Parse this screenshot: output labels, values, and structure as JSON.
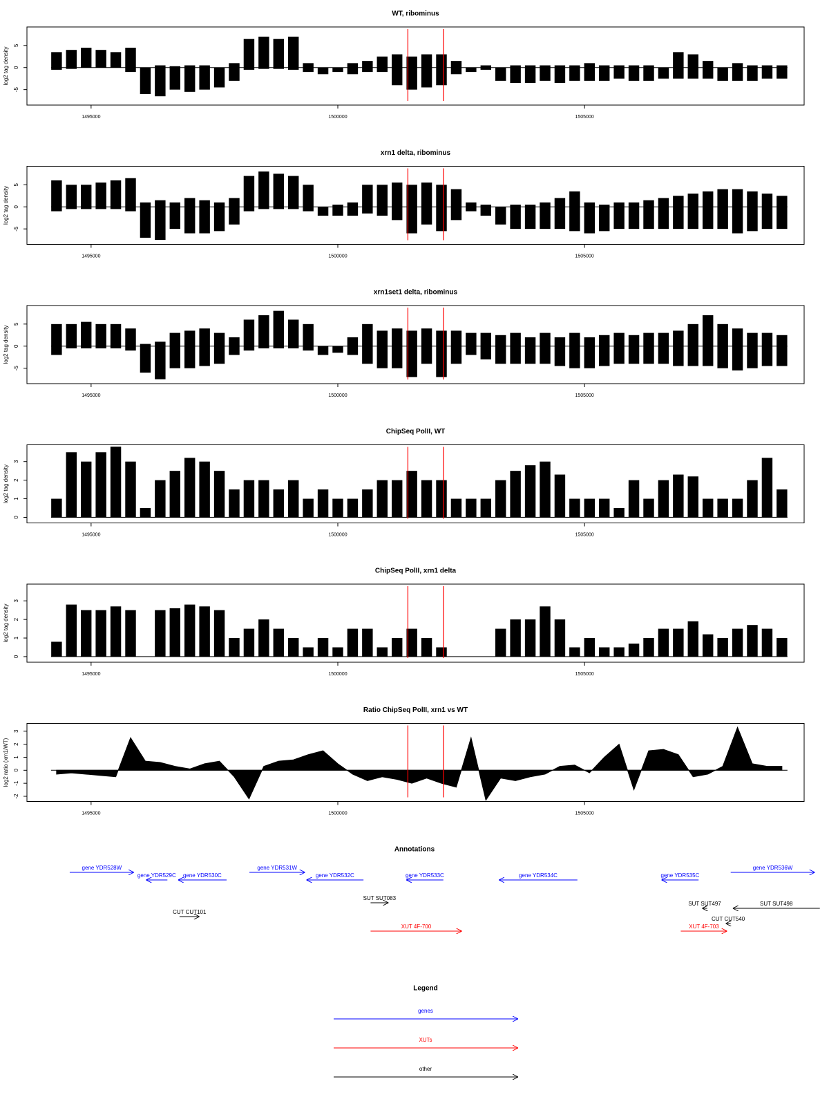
{
  "chart_data": [
    {
      "type": "bar",
      "title": "WT, ribominus",
      "ylabel": "log2 tag density",
      "x": [
        1494300,
        1494600,
        1494900,
        1495200,
        1495500,
        1495800,
        1496100,
        1496400,
        1496700,
        1497000,
        1497300,
        1497600,
        1497900,
        1498200,
        1498500,
        1498800,
        1499100,
        1499400,
        1499700,
        1500000,
        1500300,
        1500600,
        1500900,
        1501200,
        1501500,
        1501800,
        1502100,
        1502400,
        1502700,
        1503000,
        1503300,
        1503600,
        1503900,
        1504200,
        1504500,
        1504800,
        1505100,
        1505400,
        1505700,
        1506000,
        1506300,
        1506600,
        1506900,
        1507200,
        1507500,
        1507800,
        1508100,
        1508400,
        1508700,
        1509000
      ],
      "series": [
        {
          "color": "#000000",
          "values": [
            3.5,
            4,
            4.5,
            4,
            3.5,
            4.5,
            0,
            0.5,
            0.3,
            0.5,
            0.5,
            0,
            1,
            6.5,
            7,
            6.5,
            7,
            1,
            0,
            0,
            1,
            1.5,
            2.5,
            3,
            2.5,
            3,
            3,
            1.5,
            0,
            0.5,
            0,
            0.5,
            0.5,
            0.5,
            0.5,
            0.5,
            1,
            0.5,
            0.5,
            0.5,
            0.5,
            0,
            3.5,
            3,
            1.5,
            0,
            1,
            0.5,
            0.5,
            0.5
          ]
        },
        {
          "color": "#000000",
          "values": [
            -0.5,
            -0.3,
            0,
            0,
            0,
            -1,
            -6,
            -6.5,
            -5,
            -5.5,
            -5,
            -4.5,
            -3,
            -0.5,
            -0.3,
            -0.3,
            -0.5,
            -1,
            -1.5,
            -1,
            -1.5,
            -1,
            -1,
            -4,
            -5,
            -4.5,
            -4,
            -1.5,
            -1,
            -0.5,
            -3,
            -3.5,
            -3.5,
            -3,
            -3.5,
            -3,
            -3,
            -3,
            -2.5,
            -3,
            -3,
            -2.5,
            -2.5,
            -2.5,
            -2.5,
            -3,
            -3,
            -3,
            -2.5,
            -2.5
          ]
        }
      ],
      "xlim": [
        1493700,
        1509450
      ],
      "xticks": [
        1495000,
        1500000,
        1505000
      ],
      "ylim": [
        -8.5,
        9.2
      ],
      "yticks": [
        -5,
        0,
        5
      ],
      "vlines": [
        1501420,
        1502140
      ],
      "vline_color": "#ff0000"
    },
    {
      "type": "bar",
      "title": "xrn1 delta, ribominus",
      "ylabel": "log2 tag density",
      "x": [
        1494300,
        1494600,
        1494900,
        1495200,
        1495500,
        1495800,
        1496100,
        1496400,
        1496700,
        1497000,
        1497300,
        1497600,
        1497900,
        1498200,
        1498500,
        1498800,
        1499100,
        1499400,
        1499700,
        1500000,
        1500300,
        1500600,
        1500900,
        1501200,
        1501500,
        1501800,
        1502100,
        1502400,
        1502700,
        1503000,
        1503300,
        1503600,
        1503900,
        1504200,
        1504500,
        1504800,
        1505100,
        1505400,
        1505700,
        1506000,
        1506300,
        1506600,
        1506900,
        1507200,
        1507500,
        1507800,
        1508100,
        1508400,
        1508700,
        1509000
      ],
      "series": [
        {
          "color": "#000000",
          "values": [
            6,
            5,
            5,
            5.5,
            6,
            6.5,
            1,
            1.5,
            1,
            2,
            1.5,
            1,
            2,
            7,
            8,
            7.5,
            7,
            5,
            0,
            0.5,
            1,
            5,
            5,
            5.5,
            5,
            5.5,
            5,
            4,
            1,
            0.5,
            0,
            0.5,
            0.5,
            1,
            2,
            3.5,
            1,
            0.5,
            1,
            1,
            1.5,
            2,
            2.5,
            3,
            3.5,
            4,
            4,
            3.5,
            3,
            2.5
          ]
        },
        {
          "color": "#000000",
          "values": [
            -1,
            -0.5,
            -0.5,
            -0.5,
            -0.5,
            -1,
            -7,
            -7.5,
            -5,
            -6,
            -6,
            -5.5,
            -4,
            -1,
            -0.5,
            -0.5,
            -0.5,
            -1,
            -2,
            -2,
            -2,
            -1.5,
            -2,
            -3,
            -6,
            -4,
            -5.5,
            -3,
            -1,
            -2,
            -4,
            -5,
            -5,
            -5,
            -5,
            -5.5,
            -6,
            -5.5,
            -5,
            -5,
            -5,
            -5,
            -5,
            -5,
            -5,
            -5,
            -6,
            -5.5,
            -5,
            -5
          ]
        }
      ],
      "xlim": [
        1493700,
        1509450
      ],
      "xticks": [
        1495000,
        1500000,
        1505000
      ],
      "ylim": [
        -8.5,
        9.2
      ],
      "yticks": [
        -5,
        0,
        5
      ],
      "vlines": [
        1501420,
        1502140
      ],
      "vline_color": "#ff0000"
    },
    {
      "type": "bar",
      "title": "xrn1set1 delta, ribominus",
      "ylabel": "log2 tag density",
      "x": [
        1494300,
        1494600,
        1494900,
        1495200,
        1495500,
        1495800,
        1496100,
        1496400,
        1496700,
        1497000,
        1497300,
        1497600,
        1497900,
        1498200,
        1498500,
        1498800,
        1499100,
        1499400,
        1499700,
        1500000,
        1500300,
        1500600,
        1500900,
        1501200,
        1501500,
        1501800,
        1502100,
        1502400,
        1502700,
        1503000,
        1503300,
        1503600,
        1503900,
        1504200,
        1504500,
        1504800,
        1505100,
        1505400,
        1505700,
        1506000,
        1506300,
        1506600,
        1506900,
        1507200,
        1507500,
        1507800,
        1508100,
        1508400,
        1508700,
        1509000
      ],
      "series": [
        {
          "color": "#000000",
          "values": [
            5,
            5,
            5.5,
            5,
            5,
            4,
            0.5,
            1,
            3,
            3.5,
            4,
            3,
            2,
            6,
            7,
            8,
            6,
            5,
            0,
            0,
            2,
            5,
            3.5,
            4,
            3.5,
            4,
            3.5,
            3.5,
            3,
            3,
            2.5,
            3,
            2,
            3,
            2,
            3,
            2,
            2.5,
            3,
            2.5,
            3,
            3,
            3.5,
            5,
            7,
            5,
            4,
            3,
            3,
            2.5
          ]
        },
        {
          "color": "#000000",
          "values": [
            -2,
            -0.5,
            -0.5,
            -0.5,
            -0.5,
            -1,
            -6,
            -7.5,
            -5,
            -5,
            -4.5,
            -4,
            -2,
            -1,
            -0.5,
            -0.5,
            -0.5,
            -1,
            -2,
            -1.5,
            -2,
            -4,
            -5,
            -5,
            -7,
            -4,
            -7,
            -4,
            -2,
            -3,
            -4,
            -4,
            -4,
            -4,
            -4.5,
            -5,
            -5,
            -4.5,
            -4,
            -4,
            -4,
            -4,
            -4.5,
            -4.5,
            -4.5,
            -5,
            -5.5,
            -5,
            -4.5,
            -4.5
          ]
        }
      ],
      "xlim": [
        1493700,
        1509450
      ],
      "xticks": [
        1495000,
        1500000,
        1505000
      ],
      "ylim": [
        -8.5,
        9.2
      ],
      "yticks": [
        -5,
        0,
        5
      ],
      "vlines": [
        1501420,
        1502140
      ],
      "vline_color": "#ff0000"
    },
    {
      "type": "bar",
      "title": "ChipSeq PolII, WT",
      "ylabel": "log2 tag density",
      "x": [
        1494300,
        1494600,
        1494900,
        1495200,
        1495500,
        1495800,
        1496100,
        1496400,
        1496700,
        1497000,
        1497300,
        1497600,
        1497900,
        1498200,
        1498500,
        1498800,
        1499100,
        1499400,
        1499700,
        1500000,
        1500300,
        1500600,
        1500900,
        1501200,
        1501500,
        1501800,
        1502100,
        1502400,
        1502700,
        1503000,
        1503300,
        1503600,
        1503900,
        1504200,
        1504500,
        1504800,
        1505100,
        1505400,
        1505700,
        1506000,
        1506300,
        1506600,
        1506900,
        1507200,
        1507500,
        1507800,
        1508100,
        1508400,
        1508700,
        1509000
      ],
      "series": [
        {
          "color": "#000000",
          "values": [
            1,
            3.5,
            3,
            3.5,
            3.8,
            3,
            0.5,
            2,
            2.5,
            3.2,
            3,
            2.5,
            1.5,
            2,
            2,
            1.5,
            2,
            1,
            1.5,
            1,
            1,
            1.5,
            2,
            2,
            2.5,
            2,
            2,
            1,
            1,
            1,
            2,
            2.5,
            2.8,
            3,
            2.3,
            1,
            1,
            1,
            0.5,
            2,
            1,
            2,
            2.3,
            2.2,
            1,
            1,
            1,
            2,
            3.2,
            1.5
          ]
        }
      ],
      "xlim": [
        1493700,
        1509450
      ],
      "xticks": [
        1495000,
        1500000,
        1505000
      ],
      "ylim": [
        -0.3,
        3.9
      ],
      "yticks": [
        0,
        1,
        2,
        3
      ],
      "vlines": [
        1501420,
        1502140
      ],
      "vline_color": "#ff0000"
    },
    {
      "type": "bar",
      "title": "ChipSeq PolII, xrn1 delta",
      "ylabel": "log2 tag density",
      "x": [
        1494300,
        1494600,
        1494900,
        1495200,
        1495500,
        1495800,
        1496100,
        1496400,
        1496700,
        1497000,
        1497300,
        1497600,
        1497900,
        1498200,
        1498500,
        1498800,
        1499100,
        1499400,
        1499700,
        1500000,
        1500300,
        1500600,
        1500900,
        1501200,
        1501500,
        1501800,
        1502100,
        1502400,
        1502700,
        1503000,
        1503300,
        1503600,
        1503900,
        1504200,
        1504500,
        1504800,
        1505100,
        1505400,
        1505700,
        1506000,
        1506300,
        1506600,
        1506900,
        1507200,
        1507500,
        1507800,
        1508100,
        1508400,
        1508700,
        1509000
      ],
      "series": [
        {
          "color": "#000000",
          "values": [
            0.8,
            2.8,
            2.5,
            2.5,
            2.7,
            2.5,
            0,
            2.5,
            2.6,
            2.8,
            2.7,
            2.5,
            1,
            1.5,
            2,
            1.5,
            1,
            0.5,
            1,
            0.5,
            1.5,
            1.5,
            0.5,
            1,
            1.5,
            1,
            0.5,
            0,
            0,
            0,
            1.5,
            2,
            2,
            2.7,
            2,
            0.5,
            1,
            0.5,
            0.5,
            0.7,
            1,
            1.5,
            1.5,
            1.9,
            1.2,
            1,
            1.5,
            1.7,
            1.5,
            1
          ]
        }
      ],
      "xlim": [
        1493700,
        1509450
      ],
      "xticks": [
        1495000,
        1500000,
        1505000
      ],
      "ylim": [
        -0.3,
        3.9
      ],
      "yticks": [
        0,
        1,
        2,
        3
      ],
      "vlines": [
        1501420,
        1502140
      ],
      "vline_color": "#ff0000"
    },
    {
      "type": "area",
      "title": "Ratio ChipSeq PolII, xrn1 vs WT",
      "ylabel": "log2 ratio (xrn1/WT)",
      "x": [
        1494300,
        1494600,
        1494900,
        1495200,
        1495500,
        1495800,
        1496100,
        1496400,
        1496700,
        1497000,
        1497300,
        1497600,
        1497900,
        1498200,
        1498500,
        1498800,
        1499100,
        1499400,
        1499700,
        1500000,
        1500300,
        1500600,
        1500900,
        1501200,
        1501500,
        1501800,
        1502100,
        1502400,
        1502700,
        1503000,
        1503300,
        1503600,
        1503900,
        1504200,
        1504500,
        1504800,
        1505100,
        1505400,
        1505700,
        1506000,
        1506300,
        1506600,
        1506900,
        1507200,
        1507500,
        1507800,
        1508100,
        1508400,
        1508700,
        1509000
      ],
      "series": [
        {
          "color": "#000000",
          "values": [
            -0.3,
            -0.2,
            -0.3,
            -0.4,
            -0.5,
            2.5,
            0.7,
            0.6,
            0.3,
            0.1,
            0.5,
            0.7,
            -0.5,
            -2.2,
            0.3,
            0.7,
            0.8,
            1.2,
            1.5,
            0.5,
            -0.3,
            -0.8,
            -0.5,
            -0.7,
            -1,
            -0.6,
            -1,
            -1.3,
            2.5,
            -2.3,
            -0.6,
            -0.8,
            -0.5,
            -0.3,
            0.3,
            0.4,
            -0.2,
            1,
            2,
            -1.5,
            1.5,
            1.6,
            1.2,
            -0.5,
            -0.3,
            0.3,
            3.3,
            0.5,
            0.3,
            0.3
          ]
        }
      ],
      "xlim": [
        1493700,
        1509450
      ],
      "xticks": [
        1495000,
        1500000,
        1505000
      ],
      "ylim": [
        -2.4,
        3.6
      ],
      "yticks": [
        -2,
        -1,
        0,
        1,
        2,
        3
      ],
      "vlines": [
        1501420,
        1502140
      ],
      "vline_color": "#ff0000"
    }
  ],
  "annotations": {
    "title": "Annotations",
    "items": [
      {
        "label": "gene YDR528W",
        "start": 1494567,
        "end": 1495867,
        "strand": "+",
        "color": "#0000ff"
      },
      {
        "label": "gene YDR529C",
        "start": 1496113,
        "end": 1496546,
        "strand": "-",
        "color": "#0000ff"
      },
      {
        "label": "gene YDR530C",
        "start": 1496763,
        "end": 1497746,
        "strand": "-",
        "color": "#0000ff"
      },
      {
        "label": "gene YDR531W",
        "start": 1498208,
        "end": 1499335,
        "strand": "+",
        "color": "#0000ff"
      },
      {
        "label": "gene YDR532C",
        "start": 1499364,
        "end": 1500520,
        "strand": "-",
        "color": "#0000ff"
      },
      {
        "label": "gene YDR533C",
        "start": 1501387,
        "end": 1502138,
        "strand": "-",
        "color": "#0000ff"
      },
      {
        "label": "gene YDR534C",
        "start": 1503265,
        "end": 1504855,
        "strand": "-",
        "color": "#0000ff"
      },
      {
        "label": "gene YDR535C",
        "start": 1506560,
        "end": 1507311,
        "strand": "-",
        "color": "#0000ff"
      },
      {
        "label": "gene YDR536W",
        "start": 1507962,
        "end": 1509667,
        "strand": "+",
        "color": "#0000ff"
      },
      {
        "label": "SUT SUT083",
        "start": 1500664,
        "end": 1501026,
        "strand": "+",
        "color": "#000000"
      },
      {
        "label": "CUT CUT101",
        "start": 1496792,
        "end": 1497196,
        "strand": "+",
        "color": "#000000"
      },
      {
        "label": "SUT SUT497",
        "start": 1507384,
        "end": 1507485,
        "strand": "-",
        "color": "#000000"
      },
      {
        "label": "SUT SUT498",
        "start": 1508005,
        "end": 1509768,
        "strand": "-",
        "color": "#000000"
      },
      {
        "label": "CUT CUT540",
        "start": 1507861,
        "end": 1507962,
        "strand": "-",
        "color": "#000000"
      },
      {
        "label": "XUT 4F-700",
        "start": 1500664,
        "end": 1502514,
        "strand": "+",
        "color": "#ff0000"
      },
      {
        "label": "XUT 4F-703",
        "start": 1506950,
        "end": 1507889,
        "strand": "+",
        "color": "#ff0000"
      }
    ]
  },
  "legend": {
    "title": "Legend",
    "items": [
      {
        "label": "genes",
        "color": "#0000ff"
      },
      {
        "label": "XUTs",
        "color": "#ff0000"
      },
      {
        "label": "other",
        "color": "#000000"
      }
    ]
  }
}
